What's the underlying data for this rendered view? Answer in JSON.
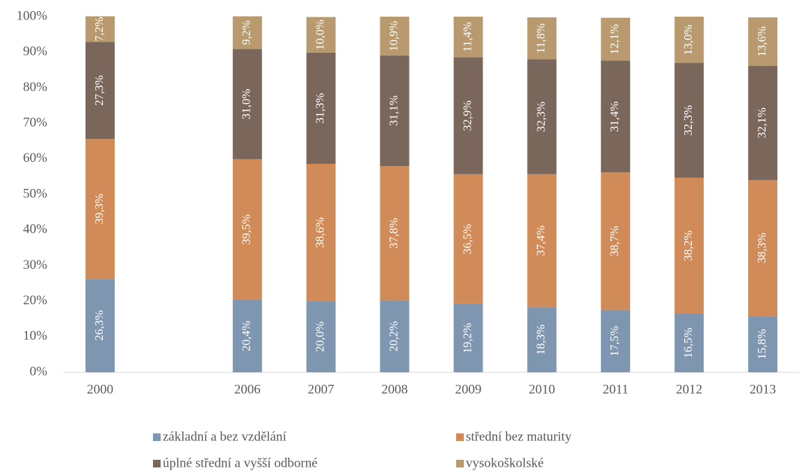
{
  "chart_data": {
    "type": "stacked_bar",
    "categories": [
      "2000",
      null,
      "2006",
      "2007",
      "2008",
      "2009",
      "2010",
      "2011",
      "2012",
      "2013"
    ],
    "series": [
      {
        "name": "základní a bez vzdělání",
        "color": "#7f96b0",
        "values": [
          26.3,
          null,
          20.4,
          20.0,
          20.2,
          19.2,
          18.3,
          17.5,
          16.5,
          15.8
        ],
        "value_labels": [
          "26,3%",
          null,
          "20,4%",
          "20,0%",
          "20,2%",
          "19,2%",
          "18,3%",
          "17,5%",
          "16,5%",
          "15,8%"
        ]
      },
      {
        "name": "střední bez maturity",
        "color": "#d08b58",
        "values": [
          39.3,
          null,
          39.5,
          38.6,
          37.8,
          36.5,
          37.4,
          38.7,
          38.2,
          38.3
        ],
        "value_labels": [
          "39,3%",
          null,
          "39,5%",
          "38,6%",
          "37,8%",
          "36,5%",
          "37,4%",
          "38,7%",
          "38,2%",
          "38,3%"
        ]
      },
      {
        "name": "úplné střední a vyšší odborné",
        "color": "#7a665a",
        "values": [
          27.3,
          null,
          31.0,
          31.3,
          31.1,
          32.9,
          32.3,
          31.4,
          32.3,
          32.1
        ],
        "value_labels": [
          "27,3%",
          null,
          "31,0%",
          "31,3%",
          "31,1%",
          "32,9%",
          "32,3%",
          "31,4%",
          "32,3%",
          "32,1%"
        ]
      },
      {
        "name": "vysokoškolské",
        "color": "#b89a6e",
        "values": [
          7.2,
          null,
          9.2,
          10.0,
          10.9,
          11.4,
          11.8,
          12.1,
          13.0,
          13.6
        ],
        "value_labels": [
          "7,2%",
          null,
          "9,2%",
          "10,0%",
          "10,9%",
          "11,4%",
          "11,8%",
          "12,1%",
          "13,0%",
          "13,6%"
        ]
      }
    ],
    "ylim": [
      0,
      100
    ],
    "yticks": [
      {
        "value": 0,
        "label": "0%"
      },
      {
        "value": 10,
        "label": "10%"
      },
      {
        "value": 20,
        "label": "20%"
      },
      {
        "value": 30,
        "label": "30%"
      },
      {
        "value": 40,
        "label": "40%"
      },
      {
        "value": 50,
        "label": "50%"
      },
      {
        "value": 60,
        "label": "60%"
      },
      {
        "value": 70,
        "label": "70%"
      },
      {
        "value": 80,
        "label": "80%"
      },
      {
        "value": 90,
        "label": "90%"
      },
      {
        "value": 100,
        "label": "100%"
      }
    ],
    "grid": false,
    "legend": "bottom"
  }
}
